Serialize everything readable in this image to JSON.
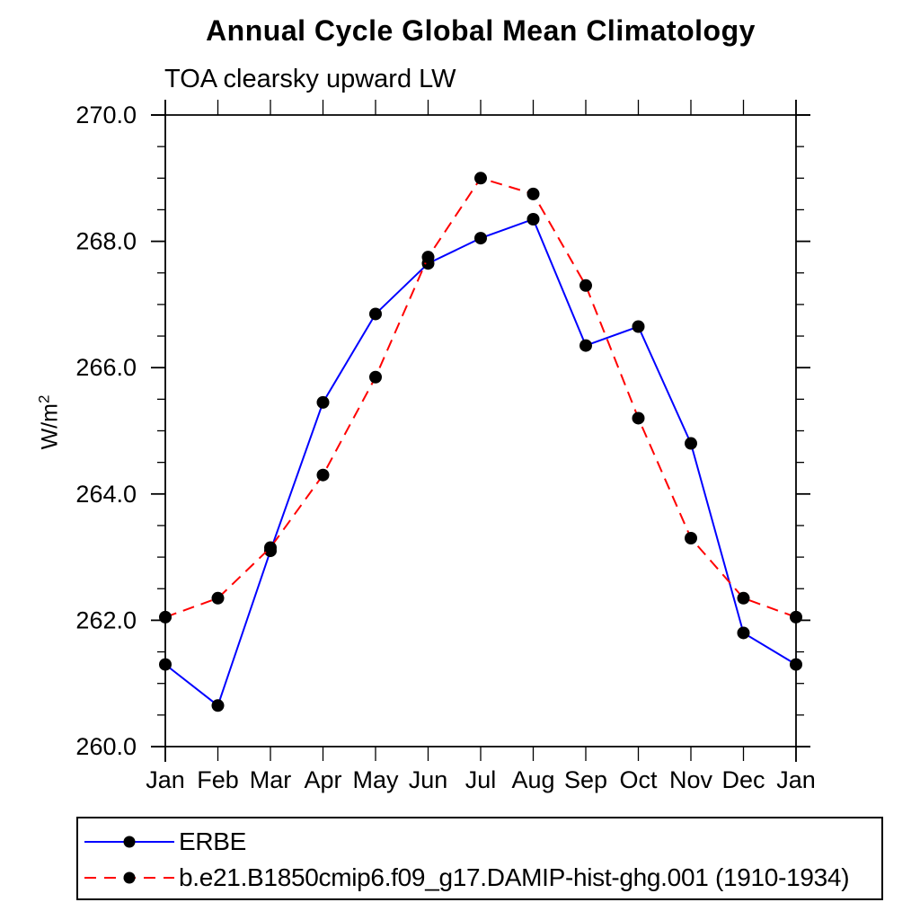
{
  "chart_data": {
    "type": "line",
    "title": "Annual Cycle Global Mean Climatology",
    "subtitle": "TOA clearsky upward LW",
    "ylabel": "W/m²",
    "ylabel_base": "W/m",
    "ylabel_exponent": "2",
    "xlabel": "",
    "categories": [
      "Jan",
      "Feb",
      "Mar",
      "Apr",
      "May",
      "Jun",
      "Jul",
      "Aug",
      "Sep",
      "Oct",
      "Nov",
      "Dec",
      "Jan"
    ],
    "ylim": [
      260.0,
      270.0
    ],
    "ytick_values": [
      260,
      262,
      264,
      266,
      268,
      270
    ],
    "ytick_labels": [
      "260.0",
      "262.0",
      "264.0",
      "266.0",
      "268.0",
      "270.0"
    ],
    "minor_tick_step": 0.5,
    "grid": false,
    "axis_color": "#000000",
    "legend_position": "bottom-left-box",
    "series": [
      {
        "name": "ERBE",
        "line_color": "#0000ff",
        "line_style": "solid",
        "marker": "filled-circle",
        "marker_color": "#000000",
        "values": [
          261.3,
          260.65,
          263.1,
          265.45,
          266.85,
          267.65,
          268.05,
          268.35,
          266.35,
          266.65,
          264.8,
          261.8,
          261.3
        ]
      },
      {
        "name": "b.e21.B1850cmip6.f09_g17.DAMIP-hist-ghg.001 (1910-1934)",
        "line_color": "#ff0000",
        "line_style": "dashed",
        "marker": "filled-circle",
        "marker_color": "#000000",
        "values": [
          262.05,
          262.35,
          263.15,
          264.3,
          265.85,
          267.75,
          269.0,
          268.75,
          267.3,
          265.2,
          263.3,
          262.35,
          262.05
        ]
      }
    ]
  }
}
